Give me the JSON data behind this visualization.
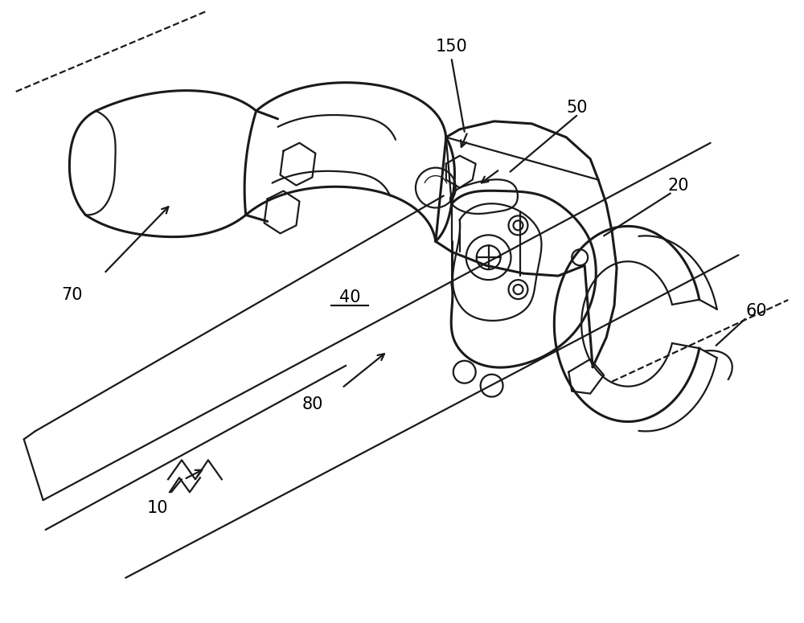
{
  "bg_color": "#ffffff",
  "line_color": "#1a1a1a",
  "fig_width": 10.0,
  "fig_height": 7.75,
  "dpi": 100,
  "lw_thick": 2.2,
  "lw_med": 1.6,
  "lw_thin": 1.0,
  "font_size": 15,
  "xlim": [
    0,
    10
  ],
  "ylim": [
    0,
    7.75
  ]
}
